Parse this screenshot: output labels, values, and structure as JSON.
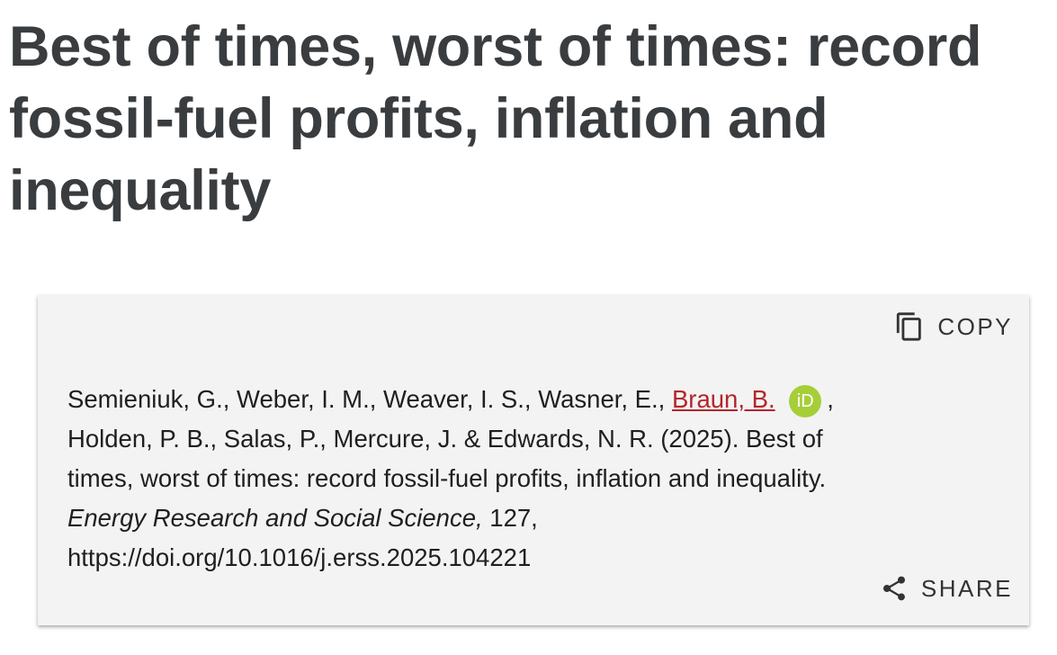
{
  "header": {
    "title": "Best of times, worst of times: record fossil-fuel profits, inflation and inequality"
  },
  "citation": {
    "authors_before": "Semieniuk, G., Weber, I. M., Weaver, I. S., Wasner, E.,",
    "linked_author": "Braun, B.",
    "orcid_icon": "iD",
    "authors_after": ", Holden, P. B., Salas, P., Mercure, J. & Edwards, N. R. (2025). Best of times, worst of times: record fossil-fuel profits, inflation and inequality.",
    "journal": "Energy Research and Social Science,",
    "volume_doi": "127, https://doi.org/10.1016/j.erss.2025.104221"
  },
  "buttons": {
    "copy": "COPY",
    "share": "SHARE"
  }
}
